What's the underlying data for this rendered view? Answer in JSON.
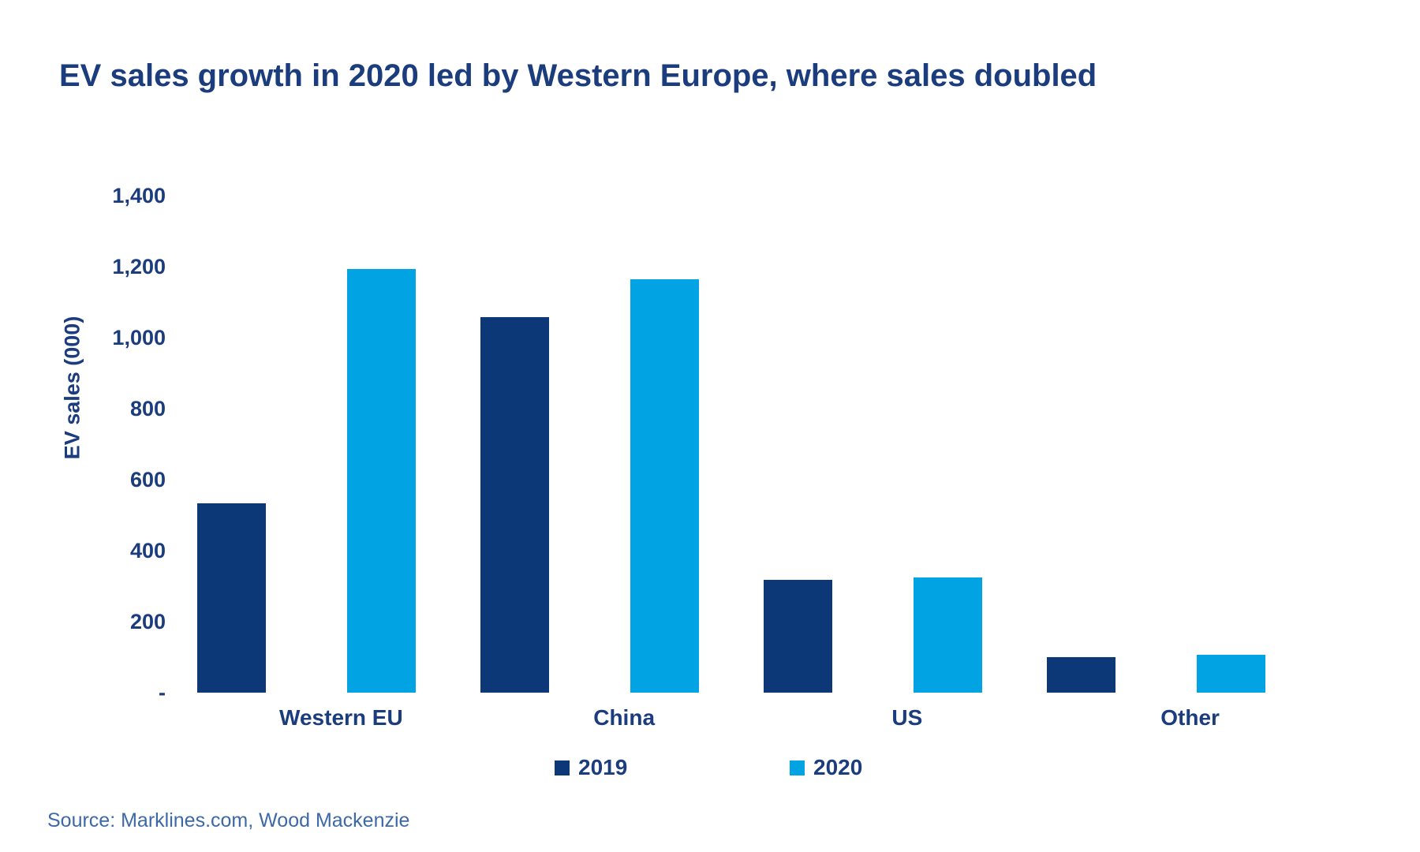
{
  "title": "EV sales growth in 2020 led by Western Europe, where sales doubled",
  "source": "Source: Marklines.com, Wood Mackenzie",
  "colors": {
    "heading_navy": "#1B3C7D",
    "series_2019": "#0D3878",
    "series_2020": "#02A3E2",
    "source_text": "#3D69A6"
  },
  "chart_data": {
    "type": "bar",
    "title": "EV sales growth in 2020 led by Western Europe, where sales doubled",
    "categories": [
      "Western EU",
      "China",
      "US",
      "Other"
    ],
    "series": [
      {
        "name": "2019",
        "color": "#0D3878",
        "values": [
          533,
          1058,
          318,
          100
        ]
      },
      {
        "name": "2020",
        "color": "#02A3E2",
        "values": [
          1193,
          1164,
          324,
          107
        ]
      }
    ],
    "xlabel": "",
    "ylabel": "EV sales (000)",
    "ylim": [
      0,
      1400
    ],
    "ytick_interval": 200,
    "ytick_labels": [
      "-",
      "200",
      "400",
      "600",
      "800",
      "1,000",
      "1,200",
      "1,400"
    ],
    "grid": false,
    "legend_position": "bottom"
  }
}
